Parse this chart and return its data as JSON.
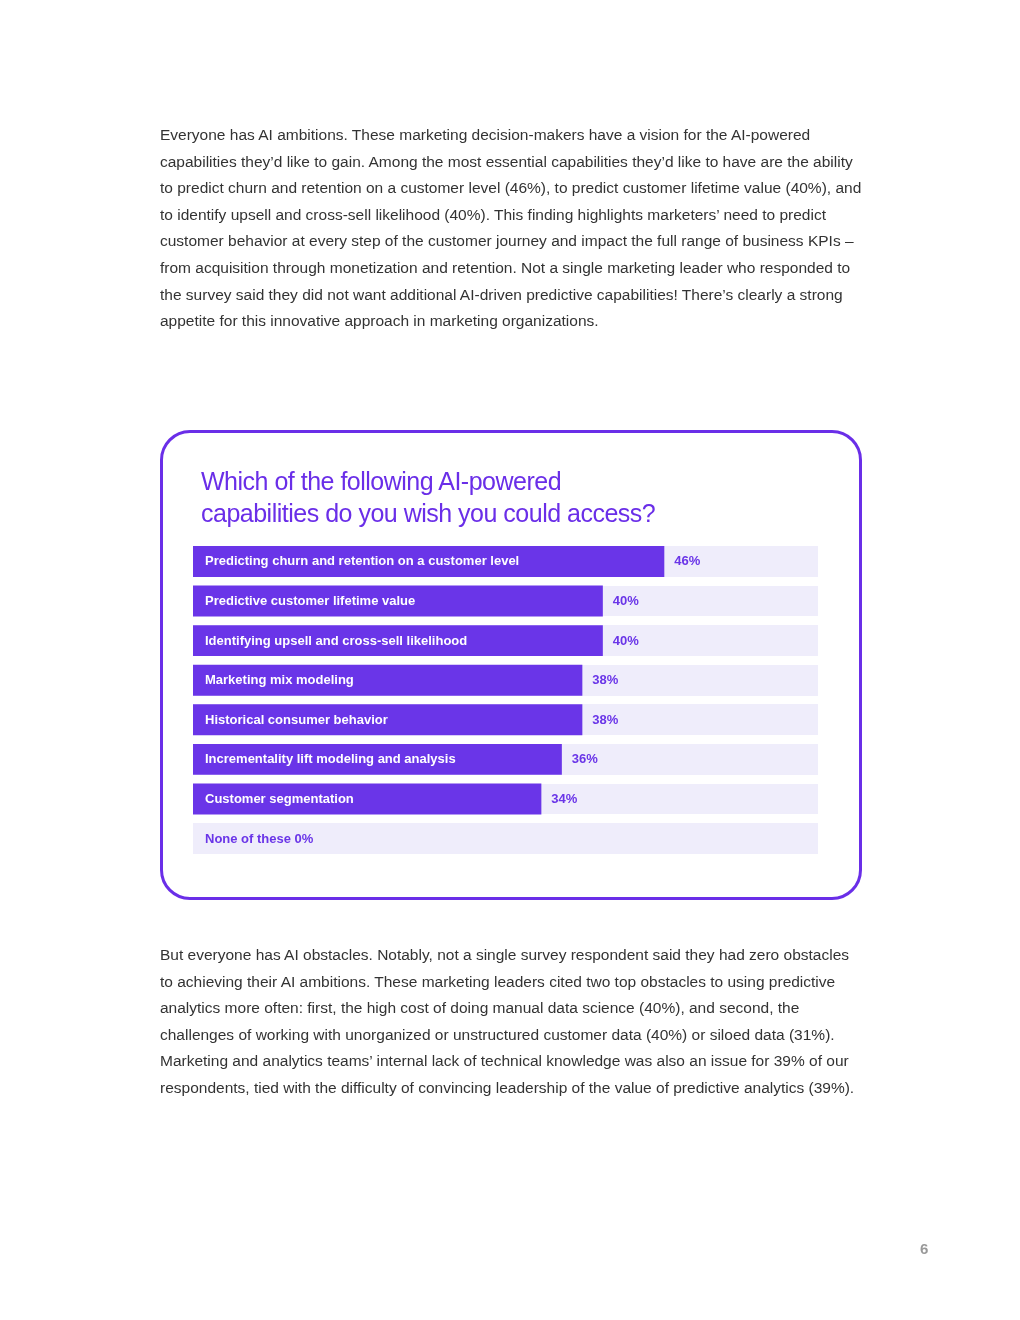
{
  "chart_data": {
    "type": "bar",
    "orientation": "horizontal",
    "title": "Which of the following AI-powered capabilities do you wish you could access?",
    "categories": [
      "Predicting churn and retention on a customer level",
      "Predictive customer lifetime value",
      "Identifying upsell and cross-sell likelihood",
      "Marketing mix modeling",
      "Historical consumer behavior",
      "Incrementality lift modeling and analysis",
      "Customer segmentation",
      "None of these"
    ],
    "values": [
      46,
      40,
      40,
      38,
      38,
      36,
      34,
      0
    ],
    "value_labels": [
      "46%",
      "40%",
      "40%",
      "38%",
      "38%",
      "36%",
      "34%",
      "0%"
    ],
    "color": "#6a35e8",
    "xlim": [
      0,
      61
    ],
    "annotations": [
      "Everyone has AI ambitions. These marketing decision-makers have a vision for the AI-powered capabilities they’d like to gain. Among the most essential capabilities they’d like to have are the ability to predict churn and retention on a customer level (46%), to predict customer lifetime value (40%), and to identify upsell and cross-sell likelihood (40%). This finding highlights marketers’ need to predict customer behavior at every step of the customer journey and impact the full range of business KPIs – from acquisition through monetization and retention. Not a single marketing leader who responded to the survey said they did not want additional AI-driven predictive capabilities! There’s clearly a strong appetite for this innovative approach in marketing organizations.",
      "But everyone has AI obstacles. Notably, not a single survey respondent said they had zero obstacles to achieving their AI ambitions. These marketing leaders cited two top obstacles to using predictive analytics more often: first, the high cost of doing manual data science (40%), and second, the challenges of working with unorganized or unstructured customer data (40%) or siloed data (31%). Marketing and analytics teams’ internal lack of technical knowledge was also an issue for 39% of our respondents, tied with the difficulty of convincing leadership of the value of predictive analytics (39%).",
      "6"
    ]
  }
}
